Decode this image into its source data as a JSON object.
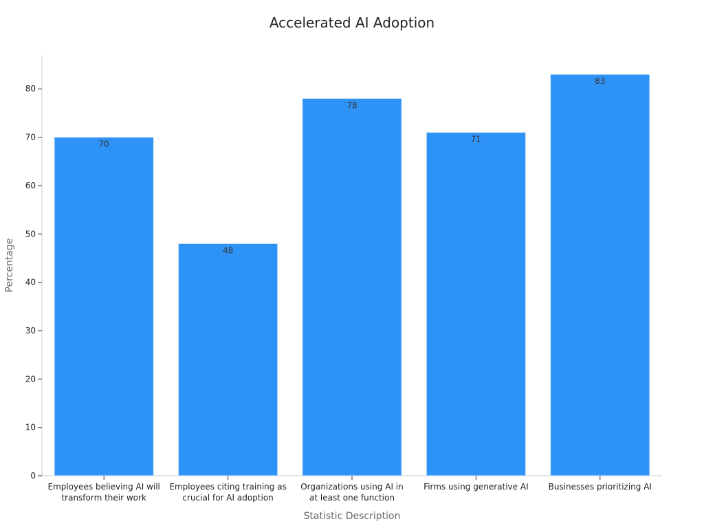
{
  "chart_data": {
    "type": "bar",
    "title": "Accelerated AI Adoption",
    "xlabel": "Statistic Description",
    "ylabel": "Percentage",
    "categories": [
      [
        "Employees believing AI will",
        "transform their work"
      ],
      [
        "Employees citing training as",
        "crucial for AI adoption"
      ],
      [
        "Organizations using AI in",
        "at least one function"
      ],
      [
        "Firms using generative AI"
      ],
      [
        "Businesses prioritizing AI"
      ]
    ],
    "values": [
      70,
      48,
      78,
      71,
      83
    ],
    "data_labels": [
      "70",
      "48",
      "78",
      "71",
      "83"
    ],
    "ylim": [
      0,
      87
    ],
    "yticks": [
      0,
      10,
      20,
      30,
      40,
      50,
      60,
      70,
      80
    ],
    "grid": false,
    "legend": "none",
    "bar_color": "#2e93f7"
  }
}
